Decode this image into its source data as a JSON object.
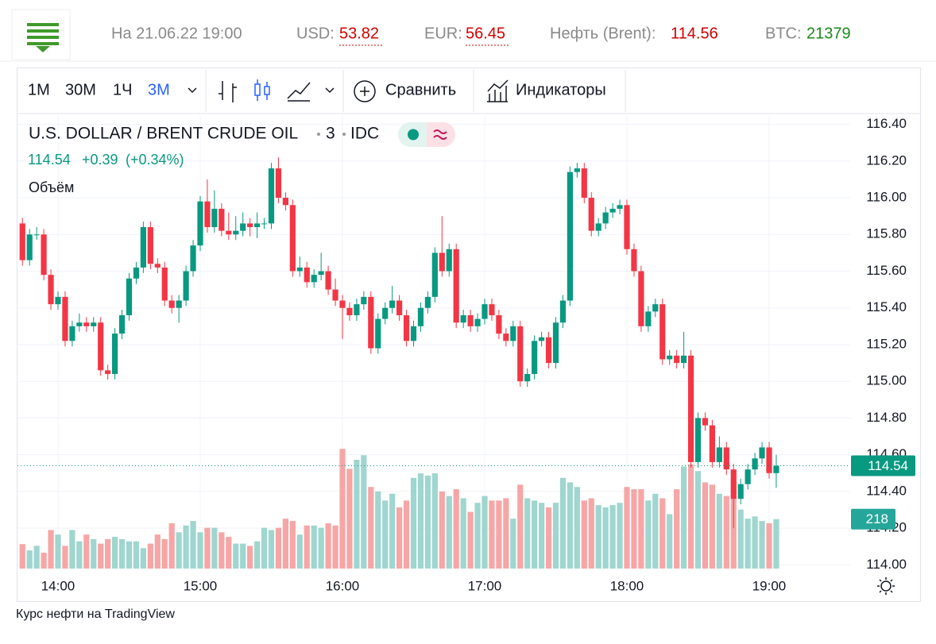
{
  "header": {
    "date": "На 21.06.22 19:00",
    "usd_label": "USD:",
    "usd": "53.82",
    "eur_label": "EUR:",
    "eur": "56.45",
    "brent_label": "Нефть (Brent):",
    "brent": "114.56",
    "btc_label": "BTC:",
    "btc": "21379"
  },
  "toolbar": {
    "intervals": [
      "1М",
      "30М",
      "1Ч",
      "3М"
    ],
    "compare": "Сравнить",
    "indicators": "Индикаторы"
  },
  "footer": "Курс нефти на TradingView",
  "chart_data": {
    "type": "candlestick",
    "title": "U.S. DOLLAR / BRENT CRUDE OIL",
    "interval": "3",
    "source": "IDC",
    "change": "+0.39",
    "change_pct": "(+0.34%)",
    "volume_label": "Объём",
    "colors": {
      "up": "#089981",
      "down": "#f23645"
    },
    "volume_colors": {
      "up": "#9fd6cf",
      "down": "#f6a6a6"
    },
    "categories": [
      null,
      null,
      null,
      null,
      null,
      "14:00",
      null,
      null,
      null,
      null,
      null,
      null,
      null,
      null,
      null,
      null,
      null,
      null,
      null,
      null,
      null,
      null,
      null,
      null,
      null,
      "15:00",
      null,
      null,
      null,
      null,
      null,
      null,
      null,
      null,
      null,
      null,
      null,
      null,
      null,
      null,
      null,
      null,
      null,
      null,
      null,
      "16:00",
      null,
      null,
      null,
      null,
      null,
      null,
      null,
      null,
      null,
      null,
      null,
      null,
      null,
      null,
      null,
      null,
      null,
      null,
      null,
      "17:00",
      null,
      null,
      null,
      null,
      null,
      null,
      null,
      null,
      null,
      null,
      null,
      null,
      null,
      null,
      null,
      null,
      null,
      null,
      null,
      "18:00",
      null,
      null,
      null,
      null,
      null,
      null,
      null,
      null,
      null,
      null,
      null,
      null,
      null,
      null,
      null,
      null,
      null,
      null,
      null,
      "19:00",
      null
    ],
    "ohlc": [
      [
        115.86,
        115.89,
        115.63,
        115.66
      ],
      [
        115.66,
        115.83,
        115.63,
        115.8
      ],
      [
        115.8,
        115.84,
        115.77,
        115.8
      ],
      [
        115.8,
        115.83,
        115.55,
        115.58
      ],
      [
        115.58,
        115.61,
        115.39,
        115.42
      ],
      [
        115.42,
        115.49,
        115.39,
        115.46
      ],
      [
        115.46,
        115.49,
        115.19,
        115.22
      ],
      [
        115.22,
        115.33,
        115.19,
        115.3
      ],
      [
        115.3,
        115.37,
        115.27,
        115.32
      ],
      [
        115.32,
        115.35,
        115.27,
        115.3
      ],
      [
        115.3,
        115.35,
        115.27,
        115.32
      ],
      [
        115.32,
        115.35,
        115.03,
        115.06
      ],
      [
        115.06,
        115.09,
        115.01,
        115.04
      ],
      [
        115.04,
        115.29,
        115.01,
        115.26
      ],
      [
        115.26,
        115.39,
        115.23,
        115.36
      ],
      [
        115.36,
        115.59,
        115.33,
        115.56
      ],
      [
        115.56,
        115.65,
        115.53,
        115.62
      ],
      [
        115.62,
        115.87,
        115.59,
        115.84
      ],
      [
        115.84,
        115.87,
        115.61,
        115.64
      ],
      [
        115.64,
        115.67,
        115.59,
        115.62
      ],
      [
        115.62,
        115.65,
        115.41,
        115.44
      ],
      [
        115.44,
        115.47,
        115.37,
        115.4
      ],
      [
        115.4,
        115.47,
        115.32,
        115.44
      ],
      [
        115.44,
        115.63,
        115.41,
        115.6
      ],
      [
        115.6,
        115.77,
        115.57,
        115.74
      ],
      [
        115.74,
        116.01,
        115.71,
        115.98
      ],
      [
        115.98,
        116.1,
        115.81,
        115.84
      ],
      [
        115.84,
        116.04,
        115.81,
        115.94
      ],
      [
        115.94,
        115.97,
        115.79,
        115.82
      ],
      [
        115.82,
        115.92,
        115.77,
        115.8
      ],
      [
        115.8,
        115.9,
        115.77,
        115.82
      ],
      [
        115.82,
        115.92,
        115.79,
        115.86
      ],
      [
        115.86,
        115.89,
        115.79,
        115.84
      ],
      [
        115.84,
        115.92,
        115.78,
        115.86
      ],
      [
        115.86,
        115.89,
        115.83,
        115.86
      ],
      [
        115.86,
        116.19,
        115.83,
        116.16
      ],
      [
        116.16,
        116.22,
        115.97,
        116.0
      ],
      [
        116.0,
        116.03,
        115.93,
        115.96
      ],
      [
        115.96,
        115.99,
        115.57,
        115.6
      ],
      [
        115.6,
        115.68,
        115.57,
        115.62
      ],
      [
        115.62,
        115.65,
        115.51,
        115.54
      ],
      [
        115.54,
        115.61,
        115.51,
        115.58
      ],
      [
        115.58,
        115.7,
        115.55,
        115.6
      ],
      [
        115.6,
        115.63,
        115.47,
        115.5
      ],
      [
        115.5,
        115.56,
        115.41,
        115.44
      ],
      [
        115.44,
        115.47,
        115.23,
        115.4
      ],
      [
        115.4,
        115.43,
        115.33,
        115.36
      ],
      [
        115.36,
        115.45,
        115.33,
        115.42
      ],
      [
        115.42,
        115.49,
        115.39,
        115.46
      ],
      [
        115.46,
        115.49,
        115.15,
        115.18
      ],
      [
        115.18,
        115.37,
        115.15,
        115.34
      ],
      [
        115.34,
        115.43,
        115.31,
        115.4
      ],
      [
        115.4,
        115.52,
        115.37,
        115.44
      ],
      [
        115.44,
        115.47,
        115.33,
        115.36
      ],
      [
        115.36,
        115.39,
        115.19,
        115.22
      ],
      [
        115.22,
        115.33,
        115.19,
        115.3
      ],
      [
        115.3,
        115.43,
        115.27,
        115.4
      ],
      [
        115.4,
        115.49,
        115.37,
        115.46
      ],
      [
        115.46,
        115.73,
        115.43,
        115.7
      ],
      [
        115.7,
        115.9,
        115.57,
        115.6
      ],
      [
        115.6,
        115.75,
        115.57,
        115.72
      ],
      [
        115.72,
        115.75,
        115.29,
        115.32
      ],
      [
        115.32,
        115.39,
        115.29,
        115.36
      ],
      [
        115.36,
        115.39,
        115.27,
        115.3
      ],
      [
        115.3,
        115.37,
        115.27,
        115.34
      ],
      [
        115.34,
        115.45,
        115.31,
        115.42
      ],
      [
        115.42,
        115.45,
        115.33,
        115.36
      ],
      [
        115.36,
        115.39,
        115.23,
        115.26
      ],
      [
        115.26,
        115.29,
        115.19,
        115.22
      ],
      [
        115.22,
        115.33,
        115.19,
        115.3
      ],
      [
        115.3,
        115.33,
        114.97,
        115.0
      ],
      [
        115.0,
        115.07,
        114.97,
        115.04
      ],
      [
        115.04,
        115.25,
        115.01,
        115.22
      ],
      [
        115.22,
        115.27,
        115.19,
        115.24
      ],
      [
        115.24,
        115.27,
        115.07,
        115.1
      ],
      [
        115.1,
        115.35,
        115.07,
        115.32
      ],
      [
        115.32,
        115.47,
        115.29,
        115.44
      ],
      [
        115.44,
        116.17,
        115.41,
        116.14
      ],
      [
        116.14,
        116.19,
        116.11,
        116.16
      ],
      [
        116.16,
        116.19,
        115.97,
        116.0
      ],
      [
        116.0,
        116.03,
        115.79,
        115.82
      ],
      [
        115.82,
        115.89,
        115.79,
        115.86
      ],
      [
        115.86,
        115.95,
        115.83,
        115.92
      ],
      [
        115.92,
        115.97,
        115.89,
        115.94
      ],
      [
        115.94,
        115.99,
        115.91,
        115.96
      ],
      [
        115.96,
        115.99,
        115.69,
        115.72
      ],
      [
        115.72,
        115.75,
        115.57,
        115.6
      ],
      [
        115.6,
        115.63,
        115.27,
        115.3
      ],
      [
        115.3,
        115.41,
        115.27,
        115.38
      ],
      [
        115.38,
        115.45,
        115.35,
        115.42
      ],
      [
        115.42,
        115.45,
        115.09,
        115.12
      ],
      [
        115.12,
        115.17,
        115.09,
        115.14
      ],
      [
        115.14,
        115.17,
        115.07,
        115.1
      ],
      [
        115.1,
        115.27,
        115.07,
        115.14
      ],
      [
        115.14,
        115.17,
        114.53,
        114.56
      ],
      [
        114.56,
        114.83,
        114.53,
        114.8
      ],
      [
        114.8,
        114.83,
        114.73,
        114.76
      ],
      [
        114.76,
        114.79,
        114.53,
        114.56
      ],
      [
        114.56,
        114.7,
        114.53,
        114.64
      ],
      [
        114.64,
        114.67,
        114.49,
        114.52
      ],
      [
        114.52,
        114.55,
        114.2,
        114.36
      ],
      [
        114.36,
        114.47,
        114.33,
        114.44
      ],
      [
        114.44,
        114.55,
        114.41,
        114.52
      ],
      [
        114.52,
        114.61,
        114.49,
        114.58
      ],
      [
        114.58,
        114.67,
        114.55,
        114.64
      ],
      [
        114.64,
        114.67,
        114.47,
        114.5
      ],
      [
        114.5,
        114.6,
        114.42,
        114.54
      ]
    ],
    "volume": [
      108,
      80,
      100,
      70,
      170,
      150,
      100,
      170,
      120,
      150,
      130,
      110,
      130,
      140,
      130,
      120,
      120,
      90,
      110,
      150,
      130,
      200,
      160,
      190,
      210,
      160,
      180,
      180,
      160,
      140,
      110,
      110,
      100,
      120,
      180,
      170,
      180,
      220,
      210,
      150,
      190,
      190,
      180,
      200,
      190,
      528,
      440,
      480,
      500,
      360,
      340,
      300,
      330,
      270,
      300,
      400,
      420,
      410,
      420,
      340,
      320,
      350,
      310,
      250,
      290,
      320,
      300,
      300,
      310,
      220,
      370,
      310,
      300,
      290,
      270,
      290,
      400,
      380,
      360,
      300,
      310,
      280,
      270,
      280,
      290,
      360,
      350,
      350,
      300,
      330,
      310,
      240,
      350,
      450,
      460,
      430,
      380,
      370,
      330,
      320,
      320,
      260,
      220,
      230,
      210,
      200,
      218
    ],
    "ylim": [
      113.98,
      116.45
    ],
    "yticks": [
      {
        "value": 114.0,
        "label": "114.00"
      },
      {
        "value": 114.2,
        "label": "114.20"
      },
      {
        "value": 114.4,
        "label": "114.40"
      },
      {
        "value": 114.6,
        "label": "114.60"
      },
      {
        "value": 114.8,
        "label": "114.80"
      },
      {
        "value": 115.0,
        "label": "115.00"
      },
      {
        "value": 115.2,
        "label": "115.20"
      },
      {
        "value": 115.4,
        "label": "115.40"
      },
      {
        "value": 115.6,
        "label": "115.60"
      },
      {
        "value": 115.8,
        "label": "115.80"
      },
      {
        "value": 116.0,
        "label": "116.00"
      },
      {
        "value": 116.2,
        "label": "116.20"
      },
      {
        "value": 116.4,
        "label": "116.40"
      }
    ],
    "y2lim": [
      0,
      2000
    ],
    "grid": true
  }
}
